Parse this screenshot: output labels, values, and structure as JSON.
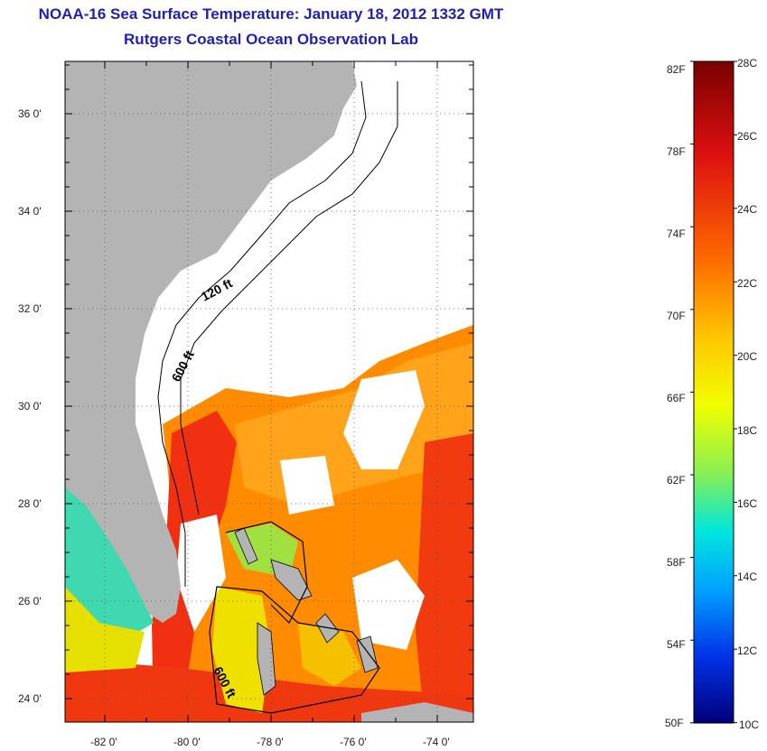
{
  "title_line1": "NOAA-16 Sea Surface Temperature:  January 18, 2012 1332 GMT",
  "title_line2": "Rutgers Coastal Ocean Observation Lab",
  "map": {
    "lat_labels": [
      "36 0'",
      "34 0'",
      "32 0'",
      "30 0'",
      "28 0'",
      "26 0'",
      "24 0'"
    ],
    "lon_labels": [
      "-82 0'",
      "-80 0'",
      "-78 0'",
      "-76 0'",
      "-74 0'"
    ],
    "contour_labels": [
      "120 ft",
      "600 ft",
      "600 ft"
    ],
    "colors": {
      "land": "#b4b4b4",
      "cloud": "#ffffff"
    }
  },
  "colorbar": {
    "f_labels": [
      "82F",
      "78F",
      "74F",
      "70F",
      "66F",
      "62F",
      "58F",
      "54F",
      "50F"
    ],
    "c_labels": [
      "28C",
      "26C",
      "24C",
      "22C",
      "20C",
      "18C",
      "16C",
      "14C",
      "12C",
      "10C"
    ]
  }
}
